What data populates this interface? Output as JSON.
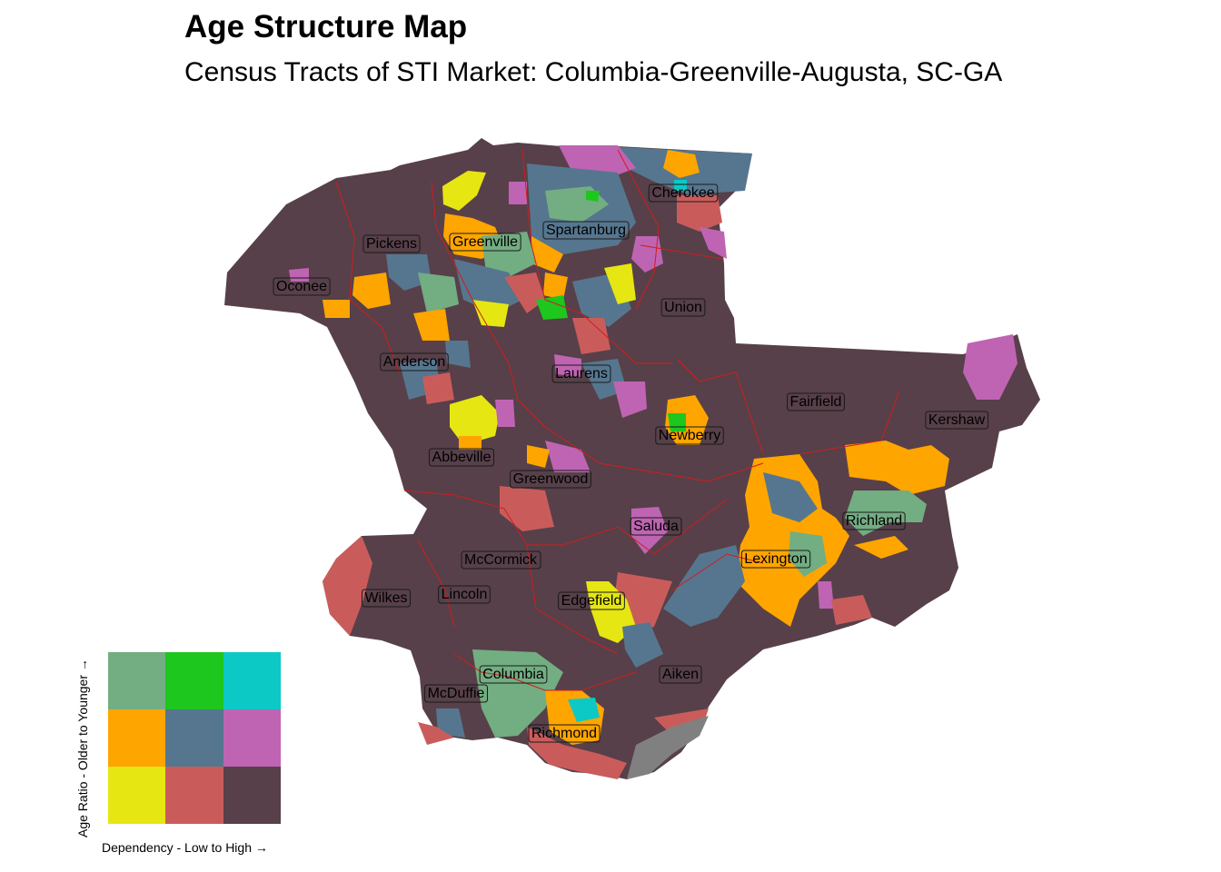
{
  "title": "Age Structure Map",
  "subtitle": "Census Tracts of STI Market: Columbia-Greenville-Augusta, SC-GA",
  "colors": {
    "base": "#574049",
    "teal_green": "#73ad82",
    "green": "#1dc71d",
    "cyan": "#0cc9c6",
    "orange": "#ffa500",
    "steel_blue": "#56768f",
    "orchid": "#bf64b3",
    "yellow": "#e6e612",
    "salmon": "#c95c5b",
    "grey": "#808080",
    "border": "#d21c1c"
  },
  "counties": [
    {
      "name": "Cherokee"
    },
    {
      "name": "Pickens"
    },
    {
      "name": "Greenville"
    },
    {
      "name": "Spartanburg"
    },
    {
      "name": "Oconee"
    },
    {
      "name": "Union"
    },
    {
      "name": "Anderson"
    },
    {
      "name": "Laurens"
    },
    {
      "name": "Fairfield"
    },
    {
      "name": "Kershaw"
    },
    {
      "name": "Newberry"
    },
    {
      "name": "Abbeville"
    },
    {
      "name": "Greenwood"
    },
    {
      "name": "Richland"
    },
    {
      "name": "Saluda"
    },
    {
      "name": "McCormick"
    },
    {
      "name": "Lexington"
    },
    {
      "name": "Wilkes"
    },
    {
      "name": "Lincoln"
    },
    {
      "name": "Edgefield"
    },
    {
      "name": "Columbia"
    },
    {
      "name": "Aiken"
    },
    {
      "name": "McDuffie"
    },
    {
      "name": "Richmond"
    }
  ],
  "legend": {
    "y_label": "Age Ratio - Older to Younger →",
    "x_label": "Dependency - Low to High →",
    "grid": [
      [
        "#73ad82",
        "#1dc71d",
        "#0cc9c6"
      ],
      [
        "#ffa500",
        "#56768f",
        "#bf64b3"
      ],
      [
        "#e6e612",
        "#c95c5b",
        "#574049"
      ]
    ]
  }
}
